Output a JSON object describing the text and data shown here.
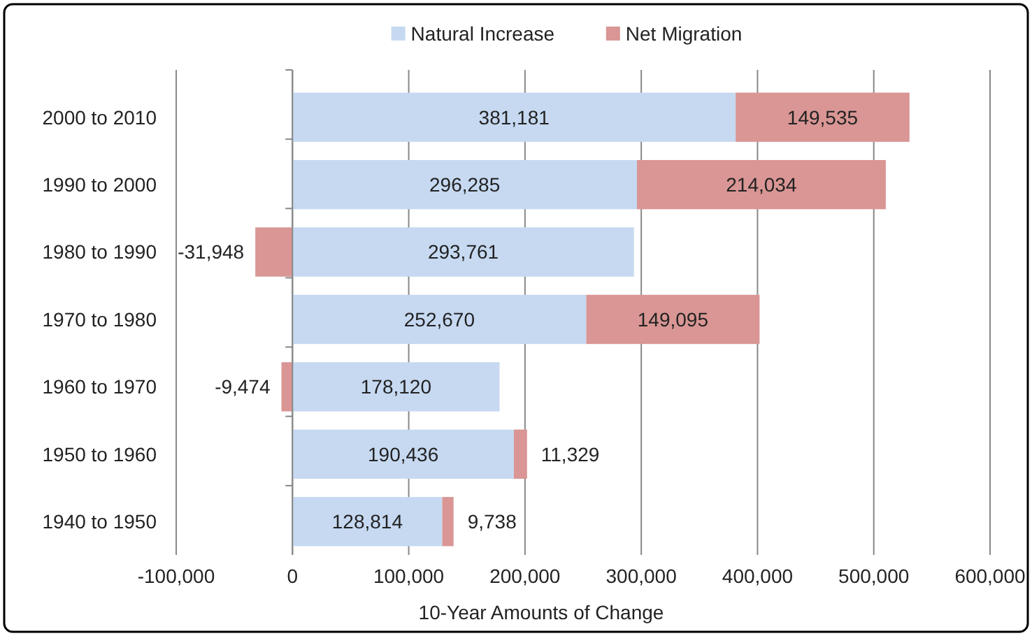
{
  "chart_data": {
    "type": "bar",
    "orientation": "horizontal",
    "stacked": true,
    "xlabel": "10-Year Amounts of Change",
    "categories": [
      "2000 to 2010",
      "1990 to 2000",
      "1980 to 1990",
      "1970 to 1980",
      "1960 to 1970",
      "1950 to 1960",
      "1940 to 1950"
    ],
    "series": [
      {
        "name": "Natural Increase",
        "color": "#c6d9f1",
        "values": [
          381181,
          296285,
          293761,
          252670,
          178120,
          190436,
          128814
        ],
        "value_labels": [
          "381,181",
          "296,285",
          "293,761",
          "252,670",
          "178,120",
          "190,436",
          "128,814"
        ]
      },
      {
        "name": "Net Migration",
        "color": "#d99694",
        "values": [
          149535,
          214034,
          -31948,
          149095,
          -9474,
          11329,
          9738
        ],
        "value_labels": [
          "149,535",
          "214,034",
          "-31,948",
          "149,095",
          "-9,474",
          "11,329",
          "9,738"
        ]
      }
    ],
    "xlim": [
      -100000,
      600000
    ],
    "xticks": [
      {
        "value": -100000,
        "label": "-100,000"
      },
      0,
      {
        "value": 100000,
        "label": "100,000"
      },
      {
        "value": 200000,
        "label": "200,000"
      },
      {
        "value": 300000,
        "label": "300,000"
      },
      {
        "value": 400000,
        "label": "400,000"
      },
      {
        "value": 500000,
        "label": "500,000"
      },
      {
        "value": 600000,
        "label": "600,000"
      }
    ],
    "grid": "x",
    "legend": "top"
  }
}
